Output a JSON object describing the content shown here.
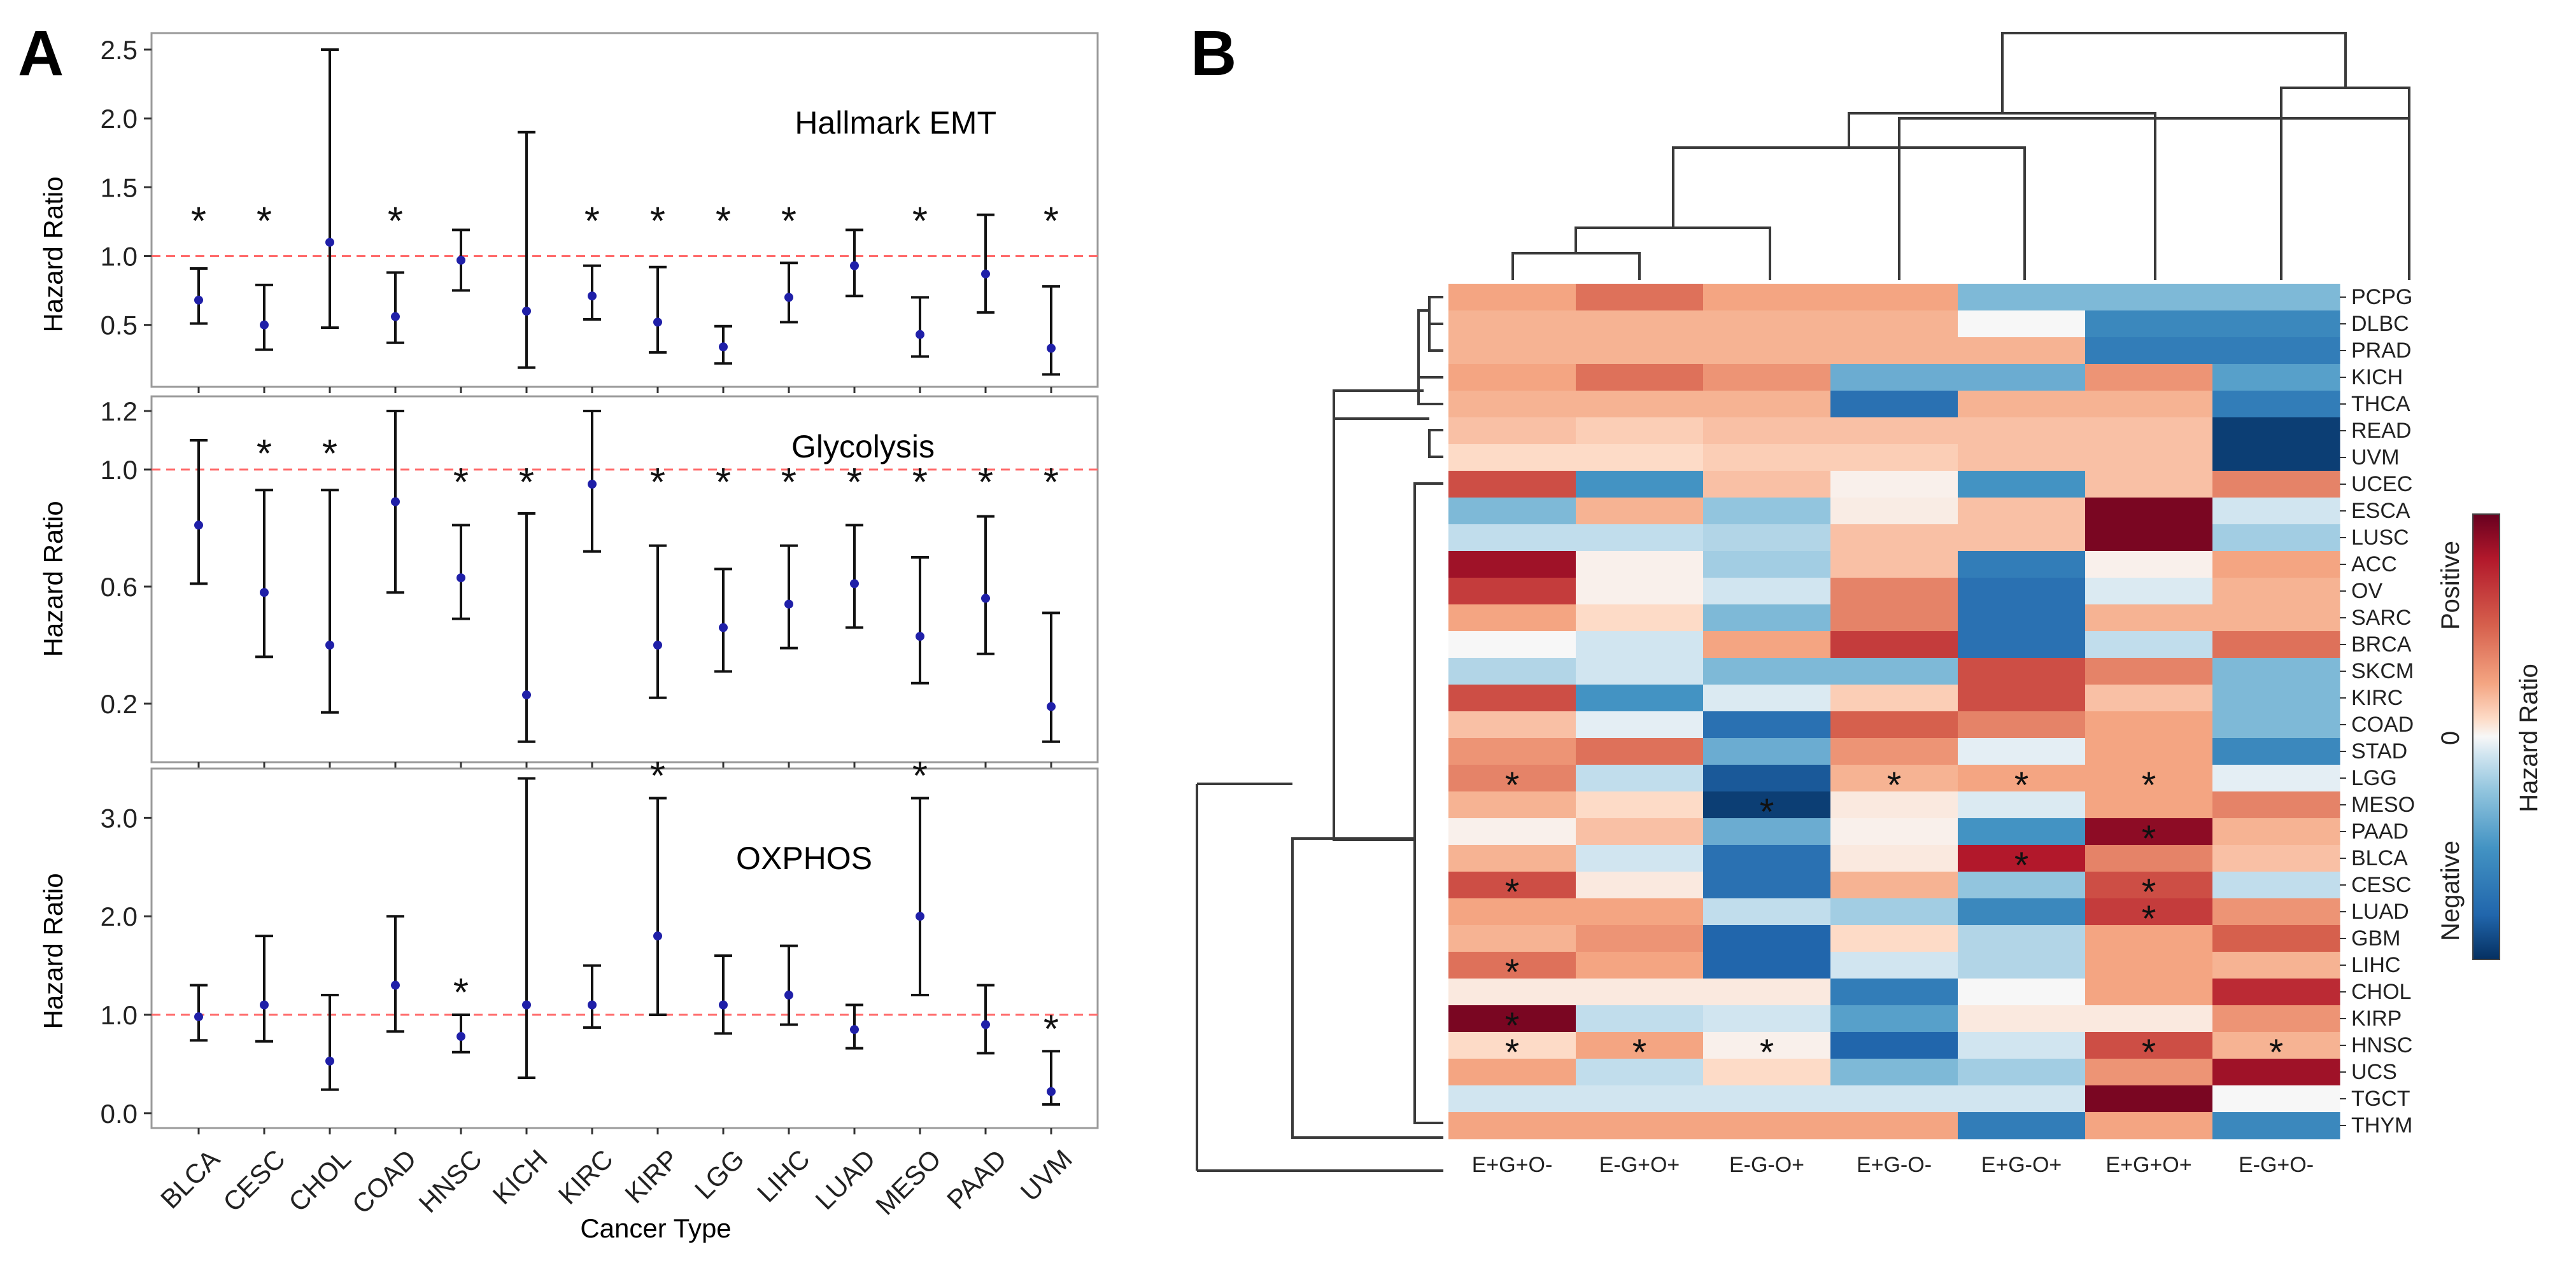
{
  "panels": {
    "left_label": "A",
    "right_label": "B"
  },
  "chart_data": [
    {
      "type": "scatter",
      "subtype": "forest",
      "title": "Hallmark EMT",
      "xlabel": "",
      "ylabel": "Hazard Ratio",
      "ylim": [
        0.05,
        2.62
      ],
      "yticks": [
        0.5,
        1.0,
        1.5,
        2.0,
        2.5
      ],
      "ytick_labels": [
        "0.5",
        "1.0",
        "1.5",
        "2.0",
        "2.5"
      ],
      "reference_line": 1.0,
      "categories": [
        "BLCA",
        "CESC",
        "CHOL",
        "COAD",
        "HNSC",
        "KICH",
        "KIRC",
        "KIRP",
        "LGG",
        "LIHC",
        "LUAD",
        "MESO",
        "PAAD",
        "UVM"
      ],
      "hr": [
        0.68,
        0.5,
        1.1,
        0.56,
        0.97,
        0.6,
        0.71,
        0.52,
        0.34,
        0.7,
        0.93,
        0.43,
        0.87,
        0.33
      ],
      "lower": [
        0.51,
        0.32,
        0.48,
        0.37,
        0.75,
        0.19,
        0.54,
        0.3,
        0.22,
        0.52,
        0.71,
        0.27,
        0.59,
        0.14
      ],
      "upper": [
        0.91,
        0.79,
        2.5,
        0.88,
        1.19,
        1.9,
        0.93,
        0.92,
        0.49,
        0.95,
        1.19,
        0.7,
        1.3,
        0.78
      ],
      "significance": [
        "*",
        "*",
        "",
        "*",
        "",
        "",
        "*",
        "*",
        "*",
        "*",
        "",
        "*",
        "",
        "*"
      ],
      "marker_color": "#1f1fa8",
      "line_color": "#ff6b6b"
    },
    {
      "type": "scatter",
      "subtype": "forest",
      "title": "Glycolysis",
      "xlabel": "",
      "ylabel": "Hazard Ratio",
      "ylim": [
        0.0,
        1.25
      ],
      "yticks": [
        0.2,
        0.6,
        1.0,
        1.2
      ],
      "ytick_labels": [
        "0.2",
        "0.6",
        "1.0",
        "1.2"
      ],
      "reference_line": 1.0,
      "categories": [
        "BLCA",
        "CESC",
        "CHOL",
        "COAD",
        "HNSC",
        "KICH",
        "KIRC",
        "KIRP",
        "LGG",
        "LIHC",
        "LUAD",
        "MESO",
        "PAAD",
        "UVM"
      ],
      "hr": [
        0.81,
        0.58,
        0.4,
        0.89,
        0.63,
        0.23,
        0.95,
        0.4,
        0.46,
        0.54,
        0.61,
        0.43,
        0.56,
        0.19
      ],
      "lower": [
        0.61,
        0.36,
        0.17,
        0.58,
        0.49,
        0.07,
        0.72,
        0.22,
        0.31,
        0.39,
        0.46,
        0.27,
        0.37,
        0.07
      ],
      "upper": [
        1.1,
        0.93,
        0.93,
        1.2,
        0.81,
        0.85,
        1.2,
        0.74,
        0.66,
        0.74,
        0.81,
        0.7,
        0.84,
        0.51
      ],
      "significance": [
        "",
        "*",
        "*",
        "",
        "*",
        "*",
        "",
        "*",
        "*",
        "*",
        "*",
        "*",
        "*",
        "*"
      ],
      "marker_color": "#1f1fa8",
      "line_color": "#ff6b6b"
    },
    {
      "type": "scatter",
      "subtype": "forest",
      "title": "OXPHOS",
      "xlabel": "Cancer Type",
      "ylabel": "Hazard Ratio",
      "ylim": [
        -0.15,
        3.5
      ],
      "yticks": [
        0.0,
        1.0,
        2.0,
        3.0
      ],
      "ytick_labels": [
        "0.0",
        "1.0",
        "2.0",
        "3.0"
      ],
      "reference_line": 1.0,
      "categories": [
        "BLCA",
        "CESC",
        "CHOL",
        "COAD",
        "HNSC",
        "KICH",
        "KIRC",
        "KIRP",
        "LGG",
        "LIHC",
        "LUAD",
        "MESO",
        "PAAD",
        "UVM"
      ],
      "hr": [
        0.98,
        1.1,
        0.53,
        1.3,
        0.78,
        1.1,
        1.1,
        1.8,
        1.1,
        1.2,
        0.85,
        2.0,
        0.9,
        0.22
      ],
      "lower": [
        0.74,
        0.73,
        0.24,
        0.83,
        0.62,
        0.36,
        0.87,
        1.0,
        0.81,
        0.9,
        0.66,
        1.2,
        0.61,
        0.09
      ],
      "upper": [
        1.3,
        1.8,
        1.2,
        2.0,
        1.0,
        3.4,
        1.5,
        3.2,
        1.6,
        1.7,
        1.1,
        3.2,
        1.3,
        0.63
      ],
      "significance": [
        "",
        "",
        "",
        "",
        "*",
        "",
        "",
        "*",
        "",
        "",
        "",
        "*",
        "",
        "*"
      ],
      "marker_color": "#1f1fa8",
      "line_color": "#ff6b6b"
    },
    {
      "type": "heatmap",
      "title": "",
      "xlabel": "",
      "ylabel": "",
      "columns": [
        "E+G+O-",
        "E-G+O+",
        "E-G-O+",
        "E+G-O-",
        "E+G-O+",
        "E+G+O+",
        "E-G+O-"
      ],
      "rows": [
        "PCPG",
        "DLBC",
        "PRAD",
        "KICH",
        "THCA",
        "READ",
        "UVM",
        "UCEC",
        "ESCA",
        "LUSC",
        "ACC",
        "OV",
        "SARC",
        "BRCA",
        "SKCM",
        "KIRC",
        "COAD",
        "STAD",
        "LGG",
        "MESO",
        "PAAD",
        "BLCA",
        "CESC",
        "LUAD",
        "GBM",
        "LIHC",
        "CHOL",
        "KIRP",
        "HNSC",
        "UCS",
        "TGCT",
        "THYM"
      ],
      "value_range": [
        -1,
        1
      ],
      "values": [
        [
          0.4,
          0.55,
          0.4,
          0.4,
          -0.45,
          -0.45,
          -0.45
        ],
        [
          0.35,
          0.35,
          0.35,
          0.35,
          0.0,
          -0.65,
          -0.65
        ],
        [
          0.35,
          0.35,
          0.35,
          0.35,
          0.35,
          -0.7,
          -0.7
        ],
        [
          0.4,
          0.55,
          0.45,
          -0.5,
          -0.5,
          0.45,
          -0.55
        ],
        [
          0.35,
          0.35,
          0.35,
          -0.75,
          0.35,
          0.35,
          -0.7
        ],
        [
          0.3,
          0.25,
          0.3,
          0.3,
          0.3,
          0.3,
          -0.95
        ],
        [
          0.2,
          0.2,
          0.25,
          0.25,
          0.3,
          0.3,
          -0.95
        ],
        [
          0.65,
          -0.6,
          0.3,
          0.05,
          -0.6,
          0.3,
          0.5
        ],
        [
          -0.45,
          0.35,
          -0.4,
          0.08,
          0.3,
          0.95,
          -0.2
        ],
        [
          -0.25,
          -0.25,
          -0.3,
          0.3,
          0.3,
          0.95,
          -0.35
        ],
        [
          0.85,
          0.05,
          -0.35,
          0.3,
          -0.7,
          0.05,
          0.4
        ],
        [
          0.7,
          0.05,
          -0.2,
          0.5,
          -0.75,
          -0.15,
          0.35
        ],
        [
          0.4,
          0.2,
          -0.45,
          0.5,
          -0.75,
          0.35,
          0.35
        ],
        [
          0.0,
          -0.2,
          0.4,
          0.7,
          -0.75,
          -0.25,
          0.55
        ],
        [
          -0.3,
          -0.2,
          -0.45,
          -0.45,
          0.65,
          0.5,
          -0.45
        ],
        [
          0.65,
          -0.6,
          -0.15,
          0.25,
          0.65,
          0.3,
          -0.45
        ],
        [
          0.3,
          -0.1,
          -0.75,
          0.6,
          0.5,
          0.4,
          -0.45
        ],
        [
          0.45,
          0.55,
          -0.5,
          0.45,
          -0.1,
          0.4,
          -0.65
        ],
        [
          0.5,
          -0.25,
          -0.85,
          0.35,
          0.4,
          0.4,
          -0.1
        ],
        [
          0.35,
          0.2,
          -0.95,
          0.1,
          -0.15,
          0.4,
          0.5
        ],
        [
          0.05,
          0.3,
          -0.5,
          0.05,
          -0.6,
          0.9,
          0.35
        ],
        [
          0.35,
          -0.2,
          -0.75,
          0.1,
          0.8,
          0.5,
          0.3
        ],
        [
          0.65,
          0.1,
          -0.75,
          0.35,
          -0.4,
          0.65,
          -0.25
        ],
        [
          0.4,
          0.4,
          -0.25,
          -0.35,
          -0.65,
          0.7,
          0.45
        ],
        [
          0.35,
          0.45,
          -0.8,
          0.2,
          -0.3,
          0.4,
          0.6
        ],
        [
          0.55,
          0.4,
          -0.8,
          -0.2,
          -0.3,
          0.4,
          0.35
        ],
        [
          0.1,
          0.1,
          0.1,
          -0.7,
          0.0,
          0.4,
          0.75
        ],
        [
          0.95,
          -0.25,
          -0.2,
          -0.55,
          0.1,
          0.1,
          0.45
        ],
        [
          0.2,
          0.4,
          0.05,
          -0.8,
          -0.2,
          0.65,
          0.35
        ],
        [
          0.4,
          -0.25,
          0.2,
          -0.45,
          -0.35,
          0.45,
          0.85
        ],
        [
          -0.2,
          -0.2,
          -0.2,
          -0.2,
          -0.2,
          0.95,
          0.0
        ],
        [
          0.4,
          0.4,
          0.4,
          0.4,
          -0.7,
          0.4,
          -0.65
        ]
      ],
      "stars": [
        [
          18,
          0
        ],
        [
          18,
          3
        ],
        [
          18,
          4
        ],
        [
          18,
          5
        ],
        [
          19,
          2
        ],
        [
          20,
          5
        ],
        [
          21,
          4
        ],
        [
          22,
          0
        ],
        [
          22,
          5
        ],
        [
          23,
          5
        ],
        [
          25,
          0
        ],
        [
          27,
          0
        ],
        [
          28,
          0
        ],
        [
          28,
          1
        ],
        [
          28,
          2
        ],
        [
          28,
          5
        ],
        [
          28,
          6
        ]
      ],
      "colorbar": {
        "label": "Hazard Ratio",
        "top": "Positive",
        "mid": "0",
        "bottom": "Negative"
      }
    }
  ]
}
